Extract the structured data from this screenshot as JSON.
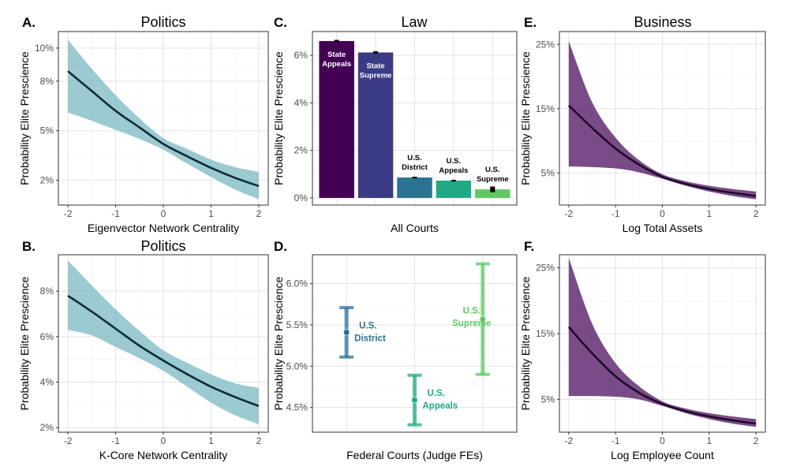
{
  "chart_data": [
    {
      "panel": "A.",
      "type": "line",
      "title": "Politics",
      "xlabel": "Eigenvector Network Centrality",
      "ylabel": "Probability Elite Prescience",
      "x_ticks": [
        "-2",
        "-1",
        "0",
        "1",
        "2"
      ],
      "y_ticks": [
        "2%",
        "5%",
        "8%",
        "10%"
      ],
      "xlim": [
        -2.2,
        2.2
      ],
      "ylim": [
        0.5,
        11.0
      ],
      "grid": true,
      "band_color": "#79b8c2",
      "line_color": "#0d2b36",
      "x": [
        -2.0,
        -1.5,
        -1.0,
        -0.5,
        0.0,
        0.5,
        1.0,
        1.5,
        2.0
      ],
      "y": [
        8.6,
        7.4,
        6.2,
        5.2,
        4.2,
        3.45,
        2.75,
        2.15,
        1.65
      ],
      "lower": [
        6.1,
        5.6,
        5.05,
        4.5,
        3.85,
        3.0,
        2.2,
        1.45,
        0.85
      ],
      "upper": [
        10.5,
        8.75,
        7.15,
        5.75,
        4.55,
        3.9,
        3.25,
        2.8,
        2.5
      ]
    },
    {
      "panel": "B.",
      "type": "line",
      "title": "Politics",
      "xlabel": "K-Core Network Centrality",
      "ylabel": "Probability Elite Prescience",
      "x_ticks": [
        "-2",
        "-1",
        "0",
        "1",
        "2"
      ],
      "y_ticks": [
        "2%",
        "4%",
        "6%",
        "8%"
      ],
      "xlim": [
        -2.2,
        2.2
      ],
      "ylim": [
        1.8,
        9.6
      ],
      "grid": true,
      "band_color": "#79b8c2",
      "line_color": "#0d2b36",
      "x": [
        -2.0,
        -1.5,
        -1.0,
        -0.5,
        0.0,
        0.5,
        1.0,
        1.5,
        2.0
      ],
      "y": [
        7.8,
        7.1,
        6.35,
        5.6,
        4.95,
        4.35,
        3.8,
        3.35,
        2.95
      ],
      "lower": [
        6.3,
        6.05,
        5.55,
        5.05,
        4.5,
        3.8,
        3.1,
        2.55,
        2.15
      ],
      "upper": [
        9.35,
        8.25,
        7.2,
        6.25,
        5.4,
        4.85,
        4.35,
        3.95,
        3.75
      ]
    },
    {
      "panel": "C.",
      "type": "bar",
      "title": "Law",
      "xlabel": "All Courts",
      "ylabel": "Probability Elite Prescience",
      "y_ticks": [
        "0%",
        "2%",
        "4%",
        "6%"
      ],
      "ylim": [
        -0.3,
        7.0
      ],
      "grid": true,
      "categories": [
        [
          "State",
          "Appeals"
        ],
        [
          "State",
          "Supreme"
        ],
        [
          "U.S.",
          "District"
        ],
        [
          "U.S.",
          "Appeals"
        ],
        [
          "U.S.",
          "Supreme"
        ]
      ],
      "values": [
        6.6,
        6.12,
        0.86,
        0.73,
        0.36
      ],
      "errors": [
        0.05,
        0.05,
        0.03,
        0.03,
        0.12
      ],
      "colors": [
        "#440154",
        "#3b3a84",
        "#2b7291",
        "#22a884",
        "#5ec962"
      ],
      "label_colors": [
        "#ffffff",
        "#ffffff",
        "#000000",
        "#000000",
        "#000000"
      ]
    },
    {
      "panel": "D.",
      "type": "scatter",
      "xlabel": "Federal Courts (Judge FEs)",
      "ylabel": "Probability Elite Prescience",
      "y_ticks": [
        "4.5%",
        "5.0%",
        "5.5%",
        "6.0%"
      ],
      "ylim": [
        4.2,
        6.35
      ],
      "grid": true,
      "points": [
        {
          "label": [
            "U.S.",
            "District"
          ],
          "value": 5.41,
          "lower": 5.11,
          "upper": 5.71,
          "color": "#2b7291"
        },
        {
          "label": [
            "U.S.",
            "Appeals"
          ],
          "value": 4.59,
          "lower": 4.29,
          "upper": 4.89,
          "color": "#22a884"
        },
        {
          "label": [
            "U.S.",
            "Supreme"
          ],
          "value": 5.57,
          "lower": 4.9,
          "upper": 6.24,
          "color": "#5ec962"
        }
      ]
    },
    {
      "panel": "E.",
      "type": "line",
      "title": "Business",
      "xlabel": "Log Total Assets",
      "ylabel": "Probability Elite Prescience",
      "x_ticks": [
        "-2",
        "-1",
        "0",
        "1",
        "2"
      ],
      "y_ticks": [
        "5%",
        "15%",
        "25%"
      ],
      "xlim": [
        -2.2,
        2.2
      ],
      "ylim": [
        0,
        27
      ],
      "grid": true,
      "band_color": "#6e3d7e",
      "line_color": "#1f0a2a",
      "x": [
        -2.0,
        -1.5,
        -1.0,
        -0.5,
        0.0,
        0.5,
        1.0,
        1.5,
        2.0
      ],
      "y": [
        15.5,
        12.0,
        8.8,
        6.3,
        4.4,
        3.3,
        2.5,
        1.9,
        1.4
      ],
      "lower": [
        6.0,
        5.9,
        5.7,
        5.1,
        4.1,
        3.0,
        2.1,
        1.4,
        0.9
      ],
      "upper": [
        25.5,
        16.0,
        10.5,
        7.0,
        4.8,
        3.7,
        3.0,
        2.5,
        2.1
      ]
    },
    {
      "panel": "F.",
      "type": "line",
      "xlabel": "Log Employee Count",
      "ylabel": "Probability Elite Prescience",
      "x_ticks": [
        "-2",
        "-1",
        "0",
        "1",
        "2"
      ],
      "y_ticks": [
        "5%",
        "15%",
        "25%"
      ],
      "xlim": [
        -2.2,
        2.2
      ],
      "ylim": [
        0,
        27
      ],
      "grid": true,
      "band_color": "#6e3d7e",
      "line_color": "#1f0a2a",
      "x": [
        -2.0,
        -1.5,
        -1.0,
        -0.5,
        0.0,
        0.5,
        1.0,
        1.5,
        2.0
      ],
      "y": [
        16.0,
        12.0,
        8.5,
        6.0,
        4.3,
        3.2,
        2.4,
        1.8,
        1.3
      ],
      "lower": [
        5.5,
        5.5,
        5.4,
        5.0,
        4.0,
        2.9,
        2.0,
        1.3,
        0.8
      ],
      "upper": [
        26.5,
        16.5,
        10.5,
        7.0,
        4.7,
        3.6,
        2.9,
        2.4,
        2.0
      ]
    }
  ]
}
